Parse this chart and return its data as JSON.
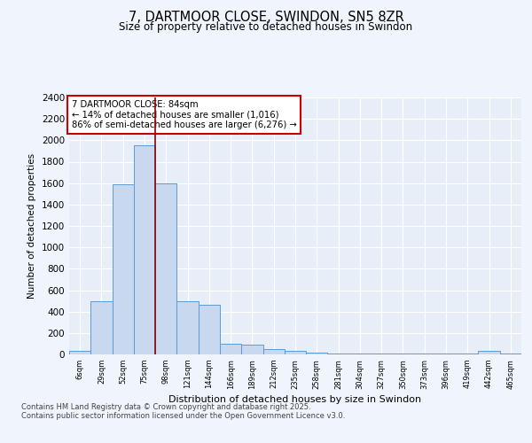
{
  "title": "7, DARTMOOR CLOSE, SWINDON, SN5 8ZR",
  "subtitle": "Size of property relative to detached houses in Swindon",
  "xlabel": "Distribution of detached houses by size in Swindon",
  "ylabel": "Number of detached properties",
  "bar_color": "#c8d9ef",
  "bar_edge_color": "#5b9bd5",
  "background_color": "#e8eef8",
  "grid_color": "#ffffff",
  "bin_labels": [
    "6sqm",
    "29sqm",
    "52sqm",
    "75sqm",
    "98sqm",
    "121sqm",
    "144sqm",
    "166sqm",
    "189sqm",
    "212sqm",
    "235sqm",
    "258sqm",
    "281sqm",
    "304sqm",
    "327sqm",
    "350sqm",
    "373sqm",
    "396sqm",
    "419sqm",
    "442sqm",
    "465sqm"
  ],
  "bar_heights": [
    30,
    500,
    1590,
    1950,
    1600,
    500,
    460,
    100,
    90,
    50,
    30,
    20,
    10,
    10,
    5,
    5,
    5,
    5,
    5,
    30,
    5
  ],
  "ylim": [
    0,
    2400
  ],
  "yticks": [
    0,
    200,
    400,
    600,
    800,
    1000,
    1200,
    1400,
    1600,
    1800,
    2000,
    2200,
    2400
  ],
  "vline_x_index": 3.5,
  "vline_color": "#8b0000",
  "annotation_text": "7 DARTMOOR CLOSE: 84sqm\n← 14% of detached houses are smaller (1,016)\n86% of semi-detached houses are larger (6,276) →",
  "annotation_box_color": "#cc0000",
  "footer_text": "Contains HM Land Registry data © Crown copyright and database right 2025.\nContains public sector information licensed under the Open Government Licence v3.0.",
  "fig_bg_color": "#f0f4fc"
}
